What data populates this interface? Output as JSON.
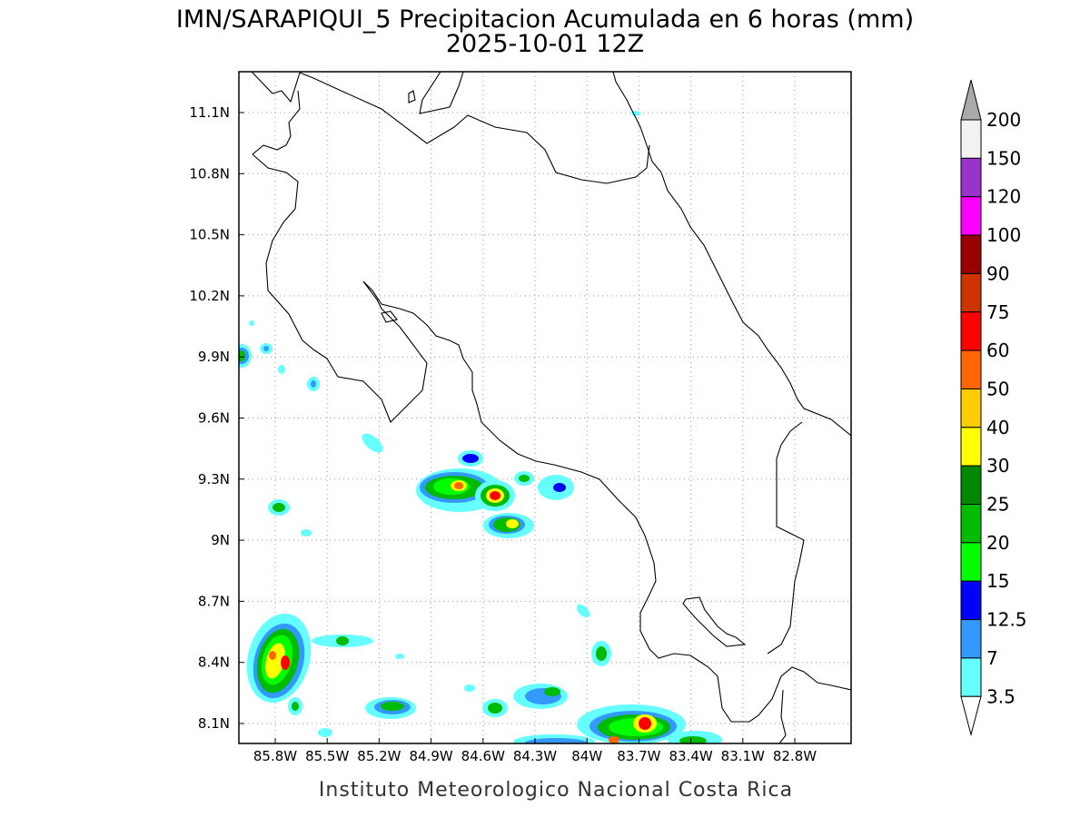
{
  "title": {
    "line1": "IMN/SARAPIQUI_5 Precipitacion Acumulada en 6 horas (mm)",
    "line2": "2025-10-01 12Z"
  },
  "axes": {
    "x_ticks": [
      "85.8W",
      "85.5W",
      "85.2W",
      "84.9W",
      "84.6W",
      "84.3W",
      "84W",
      "83.7W",
      "83.4W",
      "83.1W",
      "82.8W"
    ],
    "y_ticks": [
      "11.1N",
      "10.8N",
      "10.5N",
      "10.2N",
      "9.9N",
      "9.6N",
      "9.3N",
      "9N",
      "8.7N",
      "8.4N",
      "8.1N"
    ],
    "grid": "dotted"
  },
  "colorbar": {
    "levels": [
      "200",
      "150",
      "120",
      "100",
      "90",
      "75",
      "60",
      "50",
      "40",
      "30",
      "25",
      "20",
      "15",
      "12.5",
      "7",
      "3.5"
    ],
    "colors": [
      "#f2f2f2",
      "#9933cc",
      "#ff00ff",
      "#990000",
      "#cc3300",
      "#ff0000",
      "#ff6600",
      "#ffcc00",
      "#ffff00",
      "#008800",
      "#00bb00",
      "#00ff00",
      "#0000ff",
      "#3399ff",
      "#66ffff"
    ],
    "top_arrow_color": "#aaaaaa",
    "bottom_arrow_color": "#ffffff"
  },
  "footer": "Instituto Meteorologico Nacional Costa Rica"
}
